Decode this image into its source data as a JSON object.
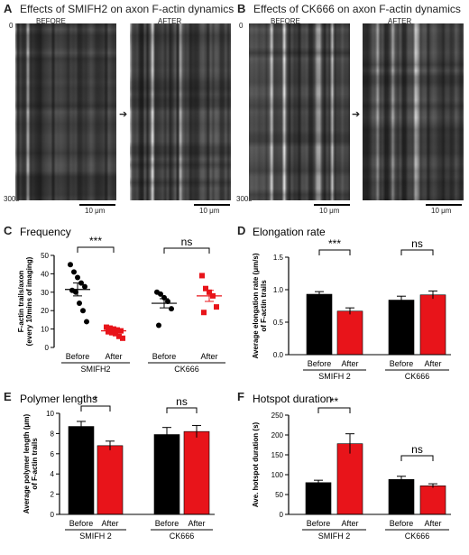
{
  "panel_a": {
    "letter": "A",
    "title": "Effects of SMIFH2 on axon F-actin dynamics",
    "before_label": "BEFORE",
    "after_label": "AFTER",
    "time_start": "0",
    "time_end": "300s",
    "scale_bar": "10 μm"
  },
  "panel_b": {
    "letter": "B",
    "title": "Effects of CK666 on axon F-actin dynamics",
    "before_label": "BEFORE",
    "after_label": "AFTER",
    "time_start": "0",
    "time_end": "300s",
    "scale_bar": "10 μm"
  },
  "chart_data": [
    {
      "panel": "C",
      "title": "Frequency",
      "type": "scatter",
      "ylabel": "F-actin trails/axon (every 10mins of imaging)",
      "ylim": [
        0,
        50
      ],
      "yticks": [
        "0",
        "10",
        "20",
        "30",
        "40",
        "50"
      ],
      "categories": [
        "Before",
        "After",
        "Before",
        "After"
      ],
      "groups": [
        "SMIFH2",
        "CK666"
      ],
      "series": [
        {
          "group": "SMIFH2",
          "condition": "Before",
          "color": "#000000",
          "marker": "circle",
          "mean": 31.5,
          "sem": 3.5,
          "points": [
            45,
            41,
            38,
            35,
            33,
            31,
            30,
            24,
            20,
            14
          ]
        },
        {
          "group": "SMIFH2",
          "condition": "After",
          "color": "#e8141a",
          "marker": "square",
          "mean": 9,
          "sem": 0.8,
          "points": [
            11,
            10.5,
            10,
            9.5,
            9,
            8.5,
            8,
            7.5,
            6,
            5
          ]
        },
        {
          "group": "CK666",
          "condition": "Before",
          "color": "#000000",
          "marker": "circle",
          "mean": 24,
          "sem": 2.5,
          "points": [
            30,
            29,
            27,
            25,
            21,
            12
          ]
        },
        {
          "group": "CK666",
          "condition": "After",
          "color": "#e8141a",
          "marker": "square",
          "mean": 28,
          "sem": 3,
          "points": [
            39,
            32,
            30,
            28,
            22,
            19
          ]
        }
      ],
      "significance": [
        "***",
        "ns"
      ]
    },
    {
      "panel": "D",
      "title": "Elongation rate",
      "type": "bar",
      "ylabel": "Average elongation rate (μm/s) of F-actin trails",
      "ylim": [
        0,
        1.5
      ],
      "yticks": [
        "0.0",
        "0.5",
        "1.0",
        "1.5"
      ],
      "categories": [
        "Before",
        "After",
        "Before",
        "After"
      ],
      "groups": [
        "SMIFH 2",
        "CK666"
      ],
      "values": [
        0.93,
        0.67,
        0.84,
        0.92
      ],
      "errors": [
        0.04,
        0.05,
        0.06,
        0.06
      ],
      "colors": [
        "#000000",
        "#e8141a",
        "#000000",
        "#e8141a"
      ],
      "significance": [
        "***",
        "ns"
      ]
    },
    {
      "panel": "E",
      "title": "Polymer lengths",
      "type": "bar",
      "ylabel": "Average polymer length (μm) of F-actin trails",
      "ylim": [
        0,
        10
      ],
      "yticks": [
        "0",
        "2",
        "4",
        "6",
        "8",
        "10"
      ],
      "categories": [
        "Before",
        "After",
        "Before",
        "After"
      ],
      "groups": [
        "SMIFH 2",
        "CK666"
      ],
      "values": [
        8.7,
        6.8,
        7.9,
        8.2
      ],
      "errors": [
        0.5,
        0.45,
        0.7,
        0.6
      ],
      "colors": [
        "#000000",
        "#e8141a",
        "#000000",
        "#e8141a"
      ],
      "significance": [
        "*",
        "ns"
      ]
    },
    {
      "panel": "F",
      "title": "Hotspot duration",
      "type": "bar",
      "ylabel": "Ave. hotspot duration (s)",
      "ylim": [
        0,
        250
      ],
      "yticks": [
        "0",
        "50",
        "100",
        "150",
        "200",
        "250"
      ],
      "categories": [
        "Before",
        "After",
        "Before",
        "After"
      ],
      "groups": [
        "SMIFH 2",
        "CK666"
      ],
      "values": [
        80,
        178,
        88,
        72
      ],
      "errors": [
        6,
        25,
        8,
        5
      ],
      "colors": [
        "#000000",
        "#e8141a",
        "#000000",
        "#e8141a"
      ],
      "significance": [
        "**",
        "ns"
      ]
    }
  ]
}
